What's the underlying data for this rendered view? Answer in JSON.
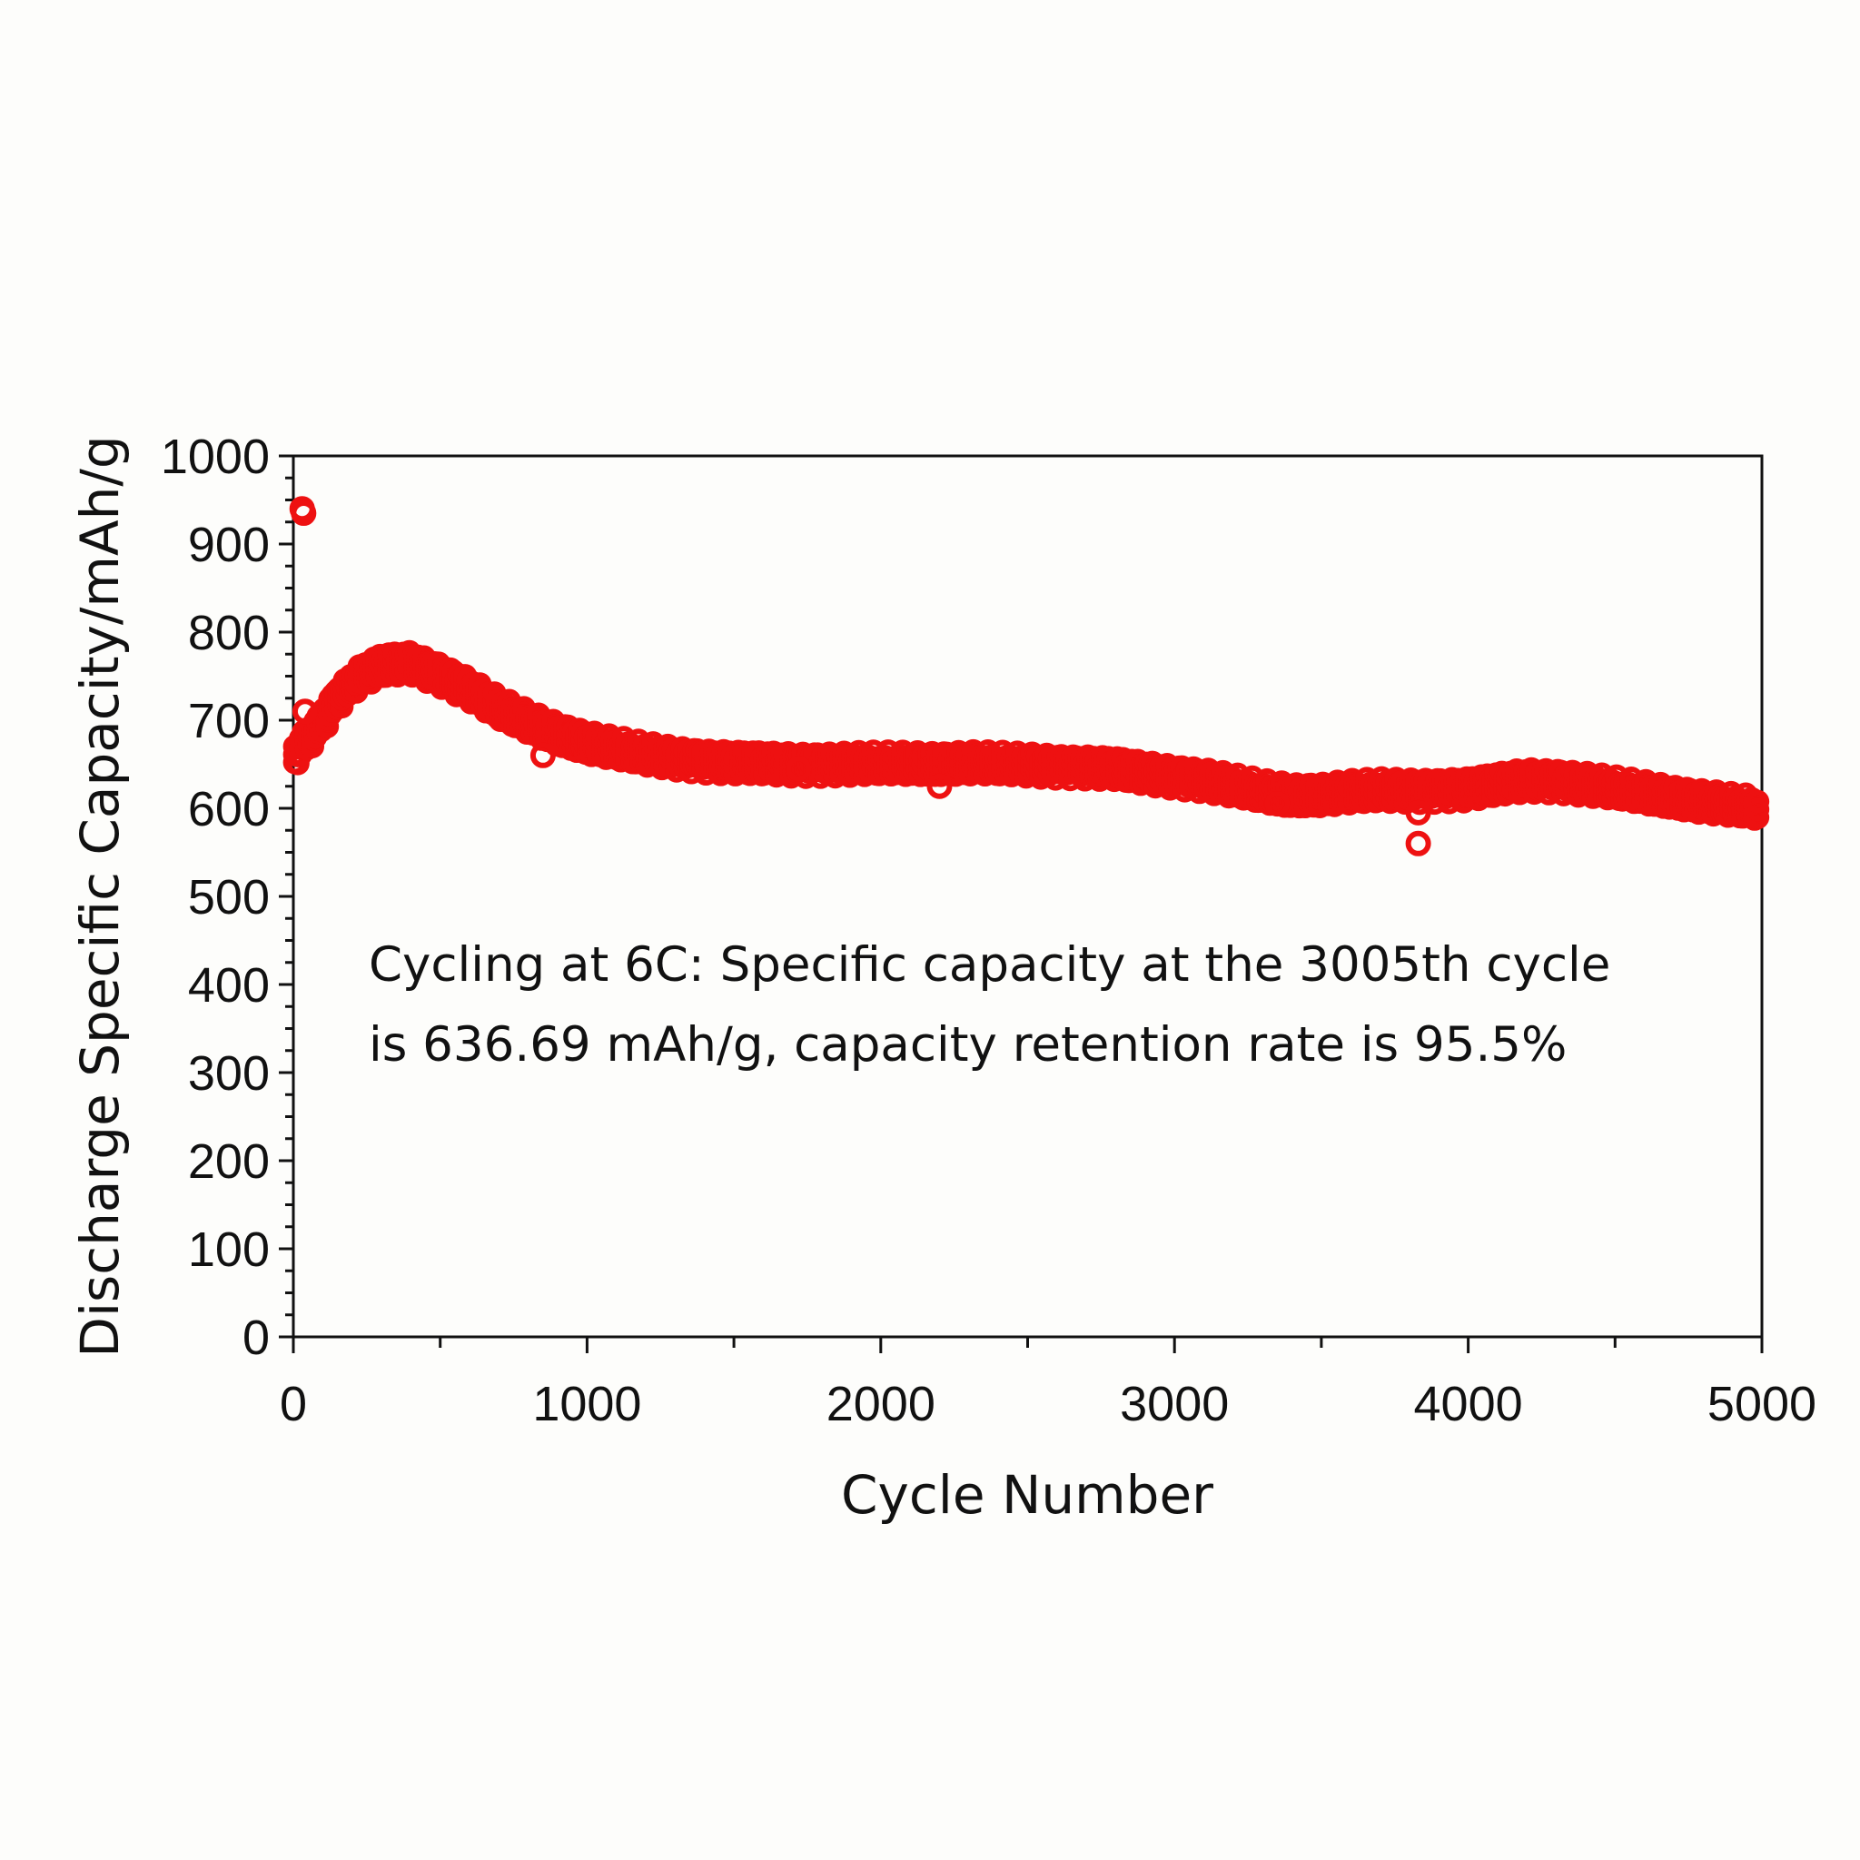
{
  "chart_data": {
    "type": "scatter",
    "xlabel": "Cycle Number",
    "ylabel": "Discharge Specific Capacity/mAh/g",
    "xlim": [
      0,
      5000
    ],
    "ylim": [
      0,
      1000
    ],
    "x_ticks": [
      0,
      1000,
      2000,
      3000,
      4000,
      5000
    ],
    "y_ticks": [
      0,
      100,
      200,
      300,
      400,
      500,
      600,
      700,
      800,
      900,
      1000
    ],
    "x_tick_labels": [
      "0",
      "1000",
      "2000",
      "3000",
      "4000",
      "5000"
    ],
    "y_tick_labels": [
      "0",
      "100",
      "200",
      "300",
      "400",
      "500",
      "600",
      "700",
      "800",
      "900",
      "1000"
    ],
    "grid": false,
    "marker": "open-circle",
    "color": "#ee1111",
    "annotation": {
      "line1": "Cycling at 6C: Specific capacity at the 3005th cycle",
      "line2": "is 636.69 mAh/g, capacity retention rate is 95.5%"
    },
    "series": [
      {
        "curve_points": [
          [
            5,
            660
          ],
          [
            30,
            672
          ],
          [
            80,
            690
          ],
          [
            150,
            725
          ],
          [
            220,
            748
          ],
          [
            300,
            762
          ],
          [
            400,
            765
          ],
          [
            500,
            752
          ],
          [
            600,
            735
          ],
          [
            700,
            713
          ],
          [
            800,
            697
          ],
          [
            900,
            684
          ],
          [
            1000,
            674
          ],
          [
            1100,
            667
          ],
          [
            1200,
            661
          ],
          [
            1300,
            657
          ],
          [
            1400,
            654
          ],
          [
            1500,
            652
          ],
          [
            1600,
            651
          ],
          [
            1700,
            650
          ],
          [
            1800,
            650
          ],
          [
            1900,
            650
          ],
          [
            2000,
            650
          ],
          [
            2100,
            650
          ],
          [
            2200,
            650
          ],
          [
            2300,
            651
          ],
          [
            2400,
            650
          ],
          [
            2500,
            649
          ],
          [
            2600,
            648
          ],
          [
            2700,
            647
          ],
          [
            2800,
            645
          ],
          [
            2900,
            640
          ],
          [
            3000,
            636
          ],
          [
            3100,
            632
          ],
          [
            3200,
            625
          ],
          [
            3300,
            618
          ],
          [
            3400,
            614
          ],
          [
            3500,
            615
          ],
          [
            3600,
            618
          ],
          [
            3700,
            620
          ],
          [
            3800,
            620
          ],
          [
            3900,
            621
          ],
          [
            4000,
            622
          ],
          [
            4100,
            627
          ],
          [
            4200,
            632
          ],
          [
            4300,
            631
          ],
          [
            4400,
            627
          ],
          [
            4500,
            622
          ],
          [
            4600,
            617
          ],
          [
            4700,
            612
          ],
          [
            4800,
            607
          ],
          [
            4900,
            603
          ],
          [
            4990,
            600
          ]
        ],
        "outliers": [
          [
            30,
            940
          ],
          [
            35,
            935
          ],
          [
            40,
            710
          ],
          [
            850,
            660
          ],
          [
            2200,
            625
          ],
          [
            3830,
            595
          ],
          [
            3830,
            560
          ],
          [
            3350,
            605
          ],
          [
            1720,
            645
          ]
        ]
      }
    ]
  }
}
